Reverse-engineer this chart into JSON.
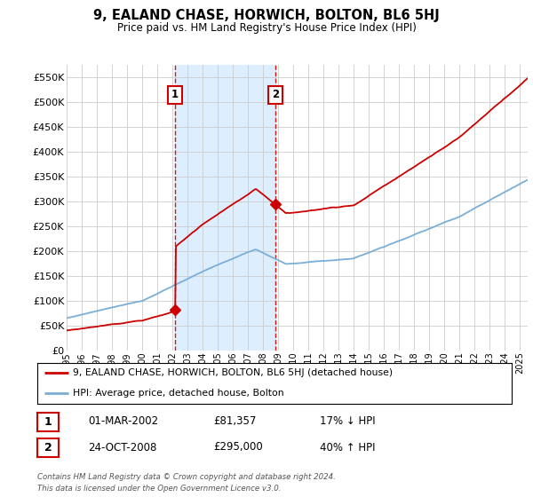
{
  "title": "9, EALAND CHASE, HORWICH, BOLTON, BL6 5HJ",
  "subtitle": "Price paid vs. HM Land Registry's House Price Index (HPI)",
  "ytick_labels": [
    "£0",
    "£50K",
    "£100K",
    "£150K",
    "£200K",
    "£250K",
    "£300K",
    "£350K",
    "£400K",
    "£450K",
    "£500K",
    "£550K"
  ],
  "ytick_values": [
    0,
    50000,
    100000,
    150000,
    200000,
    250000,
    300000,
    350000,
    400000,
    450000,
    500000,
    550000
  ],
  "xmin": 1995.0,
  "xmax": 2025.5,
  "ymin": 0,
  "ymax": 575000,
  "sale1_year": 2002.17,
  "sale1_price": 81357,
  "sale2_year": 2008.81,
  "sale2_price": 295000,
  "legend_label_red": "9, EALAND CHASE, HORWICH, BOLTON, BL6 5HJ (detached house)",
  "legend_label_blue": "HPI: Average price, detached house, Bolton",
  "table_row1": [
    "1",
    "01-MAR-2002",
    "£81,357",
    "17% ↓ HPI"
  ],
  "table_row2": [
    "2",
    "24-OCT-2008",
    "£295,000",
    "40% ↑ HPI"
  ],
  "footnote": "Contains HM Land Registry data © Crown copyright and database right 2024.\nThis data is licensed under the Open Government Licence v3.0.",
  "red_color": "#cc0000",
  "blue_color": "#7aaed6",
  "shaded_color": "#ddeeff",
  "grid_color": "#cccccc",
  "bg_color": "#ffffff",
  "xtick_years": [
    1995,
    1996,
    1997,
    1998,
    1999,
    2000,
    2001,
    2002,
    2003,
    2004,
    2005,
    2006,
    2007,
    2008,
    2009,
    2010,
    2011,
    2012,
    2013,
    2014,
    2015,
    2016,
    2017,
    2018,
    2019,
    2020,
    2021,
    2022,
    2023,
    2024,
    2025
  ]
}
